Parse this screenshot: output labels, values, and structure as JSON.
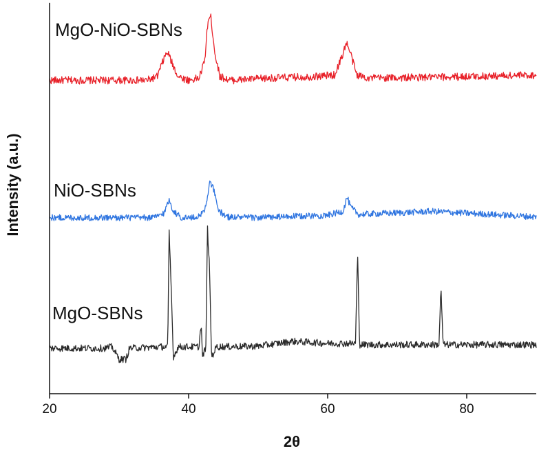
{
  "chart_data": {
    "type": "line",
    "title": "",
    "xlabel": "2θ",
    "ylabel": "Intensity (a.u.)",
    "xlim": [
      20,
      90
    ],
    "x_ticks": [
      20,
      40,
      60,
      80
    ],
    "x_tick_labels": [
      "20",
      "40",
      "60",
      "80"
    ],
    "y_ticks_shown": false,
    "grid": false,
    "series": [
      {
        "name": "MgO-NiO-SBNs",
        "color": "#e8222a",
        "noise": 0.5,
        "points": [
          [
            20,
            0.5
          ],
          [
            34,
            0.5
          ],
          [
            35.5,
            1
          ],
          [
            36.5,
            3.5
          ],
          [
            37,
            4.2
          ],
          [
            37.5,
            3.0
          ],
          [
            38.5,
            1
          ],
          [
            40,
            0.5
          ],
          [
            41.5,
            0.8
          ],
          [
            42.3,
            3
          ],
          [
            42.8,
            8.5
          ],
          [
            43.2,
            8.8
          ],
          [
            43.8,
            4
          ],
          [
            44.5,
            1
          ],
          [
            46,
            0.5
          ],
          [
            52,
            0.8
          ],
          [
            58,
            1.0
          ],
          [
            61,
            1.2
          ],
          [
            62,
            3.5
          ],
          [
            62.7,
            5.5
          ],
          [
            63.3,
            4
          ],
          [
            64.2,
            1.2
          ],
          [
            66,
            0.8
          ],
          [
            75,
            0.9
          ],
          [
            90,
            1.2
          ]
        ]
      },
      {
        "name": "NiO-SBNs",
        "color": "#2f75e0",
        "noise": 0.4,
        "points": [
          [
            20,
            0.2
          ],
          [
            35,
            0.2
          ],
          [
            36.5,
            0.8
          ],
          [
            37.2,
            2.5
          ],
          [
            37.8,
            1
          ],
          [
            39,
            0.2
          ],
          [
            41,
            0.2
          ],
          [
            42.3,
            1
          ],
          [
            43,
            4.5
          ],
          [
            43.5,
            4.2
          ],
          [
            44.2,
            1.2
          ],
          [
            45.5,
            0.3
          ],
          [
            50,
            0.2
          ],
          [
            60,
            0.5
          ],
          [
            62.2,
            1
          ],
          [
            62.8,
            2.8
          ],
          [
            63.3,
            1.5
          ],
          [
            64.5,
            0.6
          ],
          [
            75,
            1.0
          ],
          [
            90,
            0.3
          ]
        ]
      },
      {
        "name": "MgO-SBNs",
        "color": "#2b2b2b",
        "noise": 0.5,
        "points": [
          [
            20,
            0.3
          ],
          [
            28,
            0.3
          ],
          [
            29,
            0.5
          ],
          [
            30,
            -1.3
          ],
          [
            31,
            -1.3
          ],
          [
            31.5,
            0.3
          ],
          [
            36,
            0.5
          ],
          [
            37,
            0.5
          ],
          [
            37.2,
            17
          ],
          [
            37.5,
            9
          ],
          [
            37.8,
            -1
          ],
          [
            38.5,
            0.5
          ],
          [
            41.5,
            0.5
          ],
          [
            41.8,
            4
          ],
          [
            42,
            -1
          ],
          [
            42.5,
            0.5
          ],
          [
            42.7,
            18
          ],
          [
            43,
            12
          ],
          [
            43.3,
            -1
          ],
          [
            44,
            0.5
          ],
          [
            50,
            0.6
          ],
          [
            55,
            1.3
          ],
          [
            60,
            1.0
          ],
          [
            64,
            1.0
          ],
          [
            64.3,
            14
          ],
          [
            64.6,
            0.8
          ],
          [
            70,
            0.8
          ],
          [
            76,
            0.8
          ],
          [
            76.3,
            9
          ],
          [
            76.6,
            0.8
          ],
          [
            90,
            0.8
          ]
        ]
      }
    ]
  }
}
